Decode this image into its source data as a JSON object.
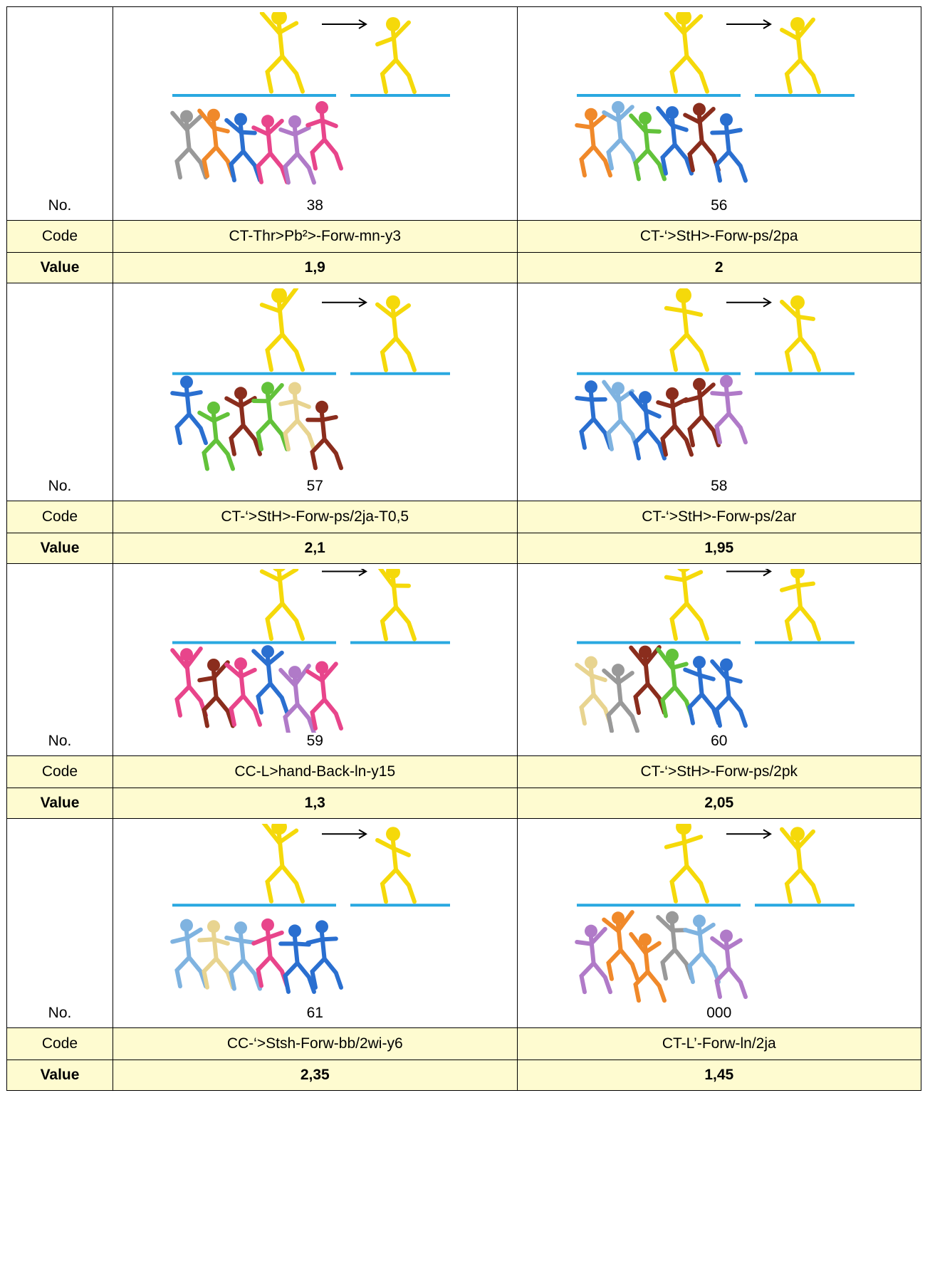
{
  "groups": [
    {
      "no_label": "No.",
      "items": [
        {
          "number": "38",
          "code": "CT-Thr>Pb²>-Forw-mn-y3",
          "value": "1,9"
        },
        {
          "number": "56",
          "code": "CT-‘>StH>-Forw-ps/2pa",
          "value": "2"
        }
      ],
      "code_label": "Code",
      "value_label": "Value"
    },
    {
      "no_label": "No.",
      "items": [
        {
          "number": "57",
          "code": "CT-‘>StH>-Forw-ps/2ja-T0,5",
          "value": "2,1"
        },
        {
          "number": "58",
          "code": "CT-‘>StH>-Forw-ps/2ar",
          "value": "1,95"
        }
      ],
      "code_label": "Code",
      "value_label": "Value"
    },
    {
      "no_label": "No.",
      "items": [
        {
          "number": "59",
          "code": "CC-L>hand-Back-ln-y15",
          "value": "1,3"
        },
        {
          "number": "60",
          "code": "CT-‘>StH>-Forw-ps/2pk",
          "value": "2,05"
        }
      ],
      "code_label": "Code",
      "value_label": "Value"
    },
    {
      "no_label": "No.",
      "items": [
        {
          "number": "61",
          "code": "CC-‘>Stsh-Forw-bb/2wi-y6",
          "value": "2,35"
        },
        {
          "number": "000",
          "code": "CT-L’-Forw-ln/2ja",
          "value": "1,45"
        }
      ],
      "code_label": "Code",
      "value_label": "Value"
    }
  ]
}
